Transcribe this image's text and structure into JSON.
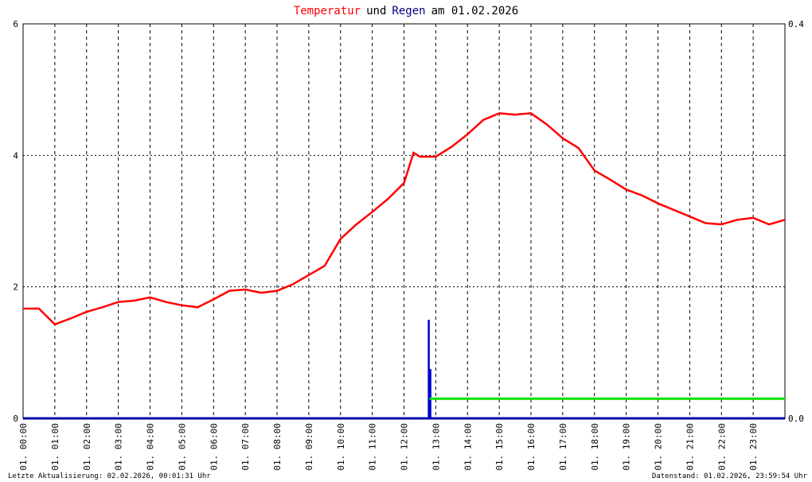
{
  "chart_data": {
    "type": "line",
    "title_parts": [
      "Temperatur",
      "und",
      "Regen",
      "am 01.02.2026"
    ],
    "title_colors": [
      "#ff0000",
      "#000000",
      "#000080",
      "#000000"
    ],
    "xlim": [
      0,
      24
    ],
    "xticks": [
      {
        "value": 0,
        "label": "01. 00:00"
      },
      {
        "value": 1,
        "label": "01. 01:00"
      },
      {
        "value": 2,
        "label": "01. 02:00"
      },
      {
        "value": 3,
        "label": "01. 03:00"
      },
      {
        "value": 4,
        "label": "01. 04:00"
      },
      {
        "value": 5,
        "label": "01. 05:00"
      },
      {
        "value": 6,
        "label": "01. 06:00"
      },
      {
        "value": 7,
        "label": "01. 07:00"
      },
      {
        "value": 8,
        "label": "01. 08:00"
      },
      {
        "value": 9,
        "label": "01. 09:00"
      },
      {
        "value": 10,
        "label": "01. 10:00"
      },
      {
        "value": 11,
        "label": "01. 11:00"
      },
      {
        "value": 12,
        "label": "01. 12:00"
      },
      {
        "value": 13,
        "label": "01. 13:00"
      },
      {
        "value": 14,
        "label": "01. 14:00"
      },
      {
        "value": 15,
        "label": "01. 15:00"
      },
      {
        "value": 16,
        "label": "01. 16:00"
      },
      {
        "value": 17,
        "label": "01. 17:00"
      },
      {
        "value": 18,
        "label": "01. 18:00"
      },
      {
        "value": 19,
        "label": "01. 19:00"
      },
      {
        "value": 20,
        "label": "01. 20:00"
      },
      {
        "value": 21,
        "label": "01. 21:00"
      },
      {
        "value": 22,
        "label": "01. 22:00"
      },
      {
        "value": 23,
        "label": "01. 23:00"
      }
    ],
    "ylim": [
      0,
      6
    ],
    "yticks": [
      0,
      2,
      4,
      6
    ],
    "y2lim": [
      0,
      0.4
    ],
    "y2ticks": [
      {
        "value": 0,
        "label": "0.0"
      },
      0.4
    ],
    "grid": true,
    "series": [
      {
        "kind": "line",
        "color": "#ff0000",
        "axis": "y",
        "x": [
          0,
          0.5,
          1,
          1.5,
          2,
          2.5,
          3,
          3.5,
          4,
          4.5,
          5,
          5.5,
          6,
          6.5,
          7,
          7.5,
          8,
          8.5,
          9,
          9.5,
          10,
          10.5,
          11,
          11.5,
          12,
          12.3,
          12.5,
          13,
          13.5,
          14,
          14.5,
          15,
          15.5,
          16,
          16.5,
          17,
          17.5,
          18,
          18.5,
          19,
          19.5,
          20,
          20.5,
          21,
          21.5,
          22,
          22.5,
          23,
          23.5,
          24
        ],
        "values": [
          1.67,
          1.67,
          1.43,
          1.52,
          1.62,
          1.69,
          1.77,
          1.79,
          1.84,
          1.77,
          1.72,
          1.69,
          1.81,
          1.94,
          1.96,
          1.91,
          1.94,
          2.04,
          2.18,
          2.32,
          2.73,
          2.95,
          3.14,
          3.34,
          3.58,
          4.04,
          3.98,
          3.98,
          4.13,
          4.32,
          4.54,
          4.64,
          4.62,
          4.64,
          4.47,
          4.26,
          4.11,
          3.77,
          3.63,
          3.48,
          3.39,
          3.27,
          3.17,
          3.07,
          2.97,
          2.95,
          3.02,
          3.05,
          2.95,
          3.02
        ]
      },
      {
        "kind": "impulse",
        "color": "#0000cc",
        "axis": "y2",
        "x": [
          12.78,
          12.83
        ],
        "values": [
          0.1,
          0.05
        ]
      },
      {
        "kind": "line",
        "color": "#00e000",
        "axis": "y2",
        "x": [
          12.8,
          24
        ],
        "values": [
          0.02,
          0.02
        ]
      }
    ],
    "footer_left": "Letzte Aktualisierung: 02.02.2026, 00:01:31 Uhr",
    "footer_right": "Datenstand: 01.02.2026, 23:59:54 Uhr"
  }
}
